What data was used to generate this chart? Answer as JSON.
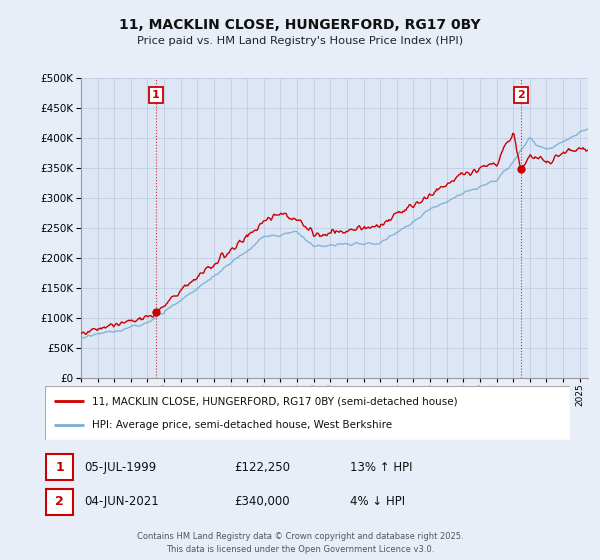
{
  "title": "11, MACKLIN CLOSE, HUNGERFORD, RG17 0BY",
  "subtitle": "Price paid vs. HM Land Registry's House Price Index (HPI)",
  "legend_line1": "11, MACKLIN CLOSE, HUNGERFORD, RG17 0BY (semi-detached house)",
  "legend_line2": "HPI: Average price, semi-detached house, West Berkshire",
  "footer": "Contains HM Land Registry data © Crown copyright and database right 2025.\nThis data is licensed under the Open Government Licence v3.0.",
  "house_color": "#cc0000",
  "hpi_color": "#7ab0d4",
  "transaction1_label": "1",
  "transaction1_date": "05-JUL-1999",
  "transaction1_price": "£122,250",
  "transaction1_hpi": "13% ↑ HPI",
  "transaction2_label": "2",
  "transaction2_date": "04-JUN-2021",
  "transaction2_price": "£340,000",
  "transaction2_hpi": "4% ↓ HPI",
  "ylim": [
    0,
    500000
  ],
  "yticks": [
    0,
    50000,
    100000,
    150000,
    200000,
    250000,
    300000,
    350000,
    400000,
    450000,
    500000
  ],
  "background_color": "#e8eef8",
  "plot_bg": "#dde6f4",
  "grid_color": "#c0cce0",
  "xmin": 1995,
  "xmax": 2025.5,
  "sale1_year": 1999.5,
  "sale1_price": 108000,
  "sale2_year": 2021.45,
  "sale2_price": 350000
}
